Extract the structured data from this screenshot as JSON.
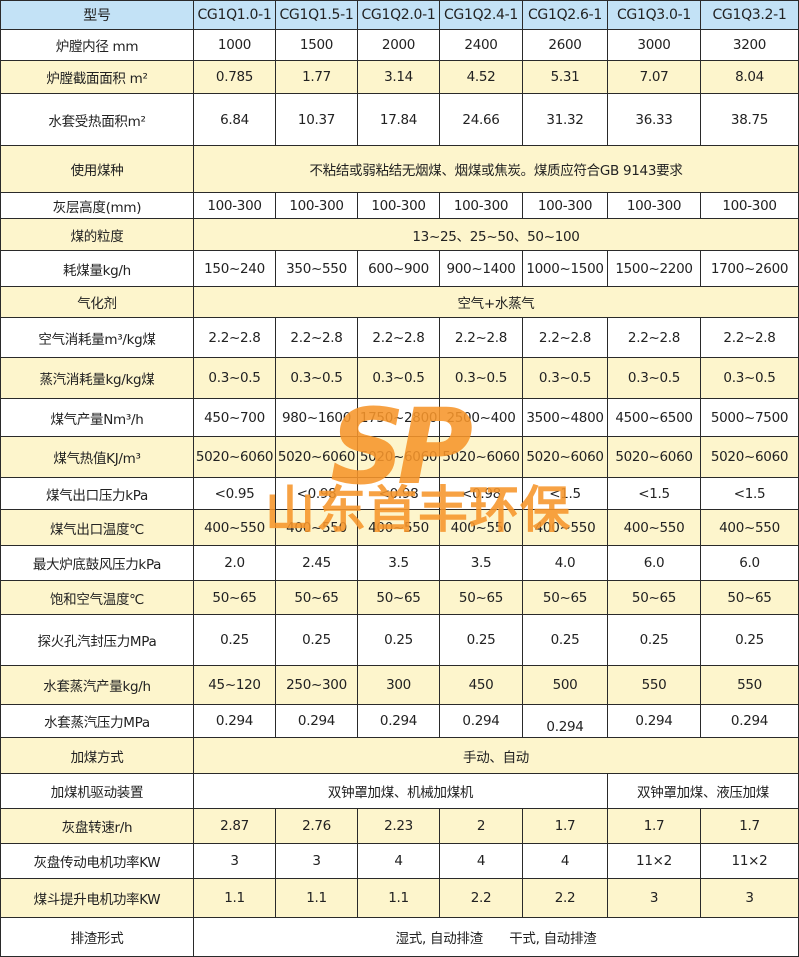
{
  "colors": {
    "header_bg": "#c3e2f6",
    "highlight_bg": "#fdf5cc",
    "watermark": "#f7962b"
  },
  "watermark": {
    "logo": "SP",
    "company": "山东首丰环保"
  },
  "table": {
    "header": {
      "label": "型号",
      "models": [
        "CG1Q1.0-1",
        "CG1Q1.5-1",
        "CG1Q2.0-1",
        "CG1Q2.4-1",
        "CG1Q2.6-1",
        "CG1Q3.0-1",
        "CG1Q3.2-1"
      ]
    },
    "rows": [
      {
        "label": "炉膛内径 mm",
        "cells": [
          "1000",
          "1500",
          "2000",
          "2400",
          "2600",
          "3000",
          "3200"
        ]
      },
      {
        "label": "炉膛截面面积 m²",
        "highlight": true,
        "cells": [
          "0.785",
          "1.77",
          "3.14",
          "4.52",
          "5.31",
          "7.07",
          "8.04"
        ]
      },
      {
        "label": "水套受热面积m²",
        "cells": [
          "6.84",
          "10.37",
          "17.84",
          "24.66",
          "31.32",
          "36.33",
          "38.75"
        ]
      },
      {
        "label": "使用煤种",
        "highlight": true,
        "spans": [
          {
            "text": "不粘结或弱粘结无烟煤、烟煤或焦炭。煤质应符合GB 9143要求",
            "cols": 7
          }
        ]
      },
      {
        "label": "灰层高度(mm)",
        "cells": [
          "100-300",
          "100-300",
          "100-300",
          "100-300",
          "100-300",
          "100-300",
          "100-300"
        ]
      },
      {
        "label": "煤的粒度",
        "highlight": true,
        "spans": [
          {
            "text": "13~25、25~50、50~100",
            "cols": 7
          }
        ]
      },
      {
        "label": "耗煤量kg/h",
        "cells": [
          "150~240",
          "350~550",
          "600~900",
          "900~1400",
          "1000~1500",
          "1500~2200",
          "1700~2600"
        ]
      },
      {
        "label": "气化剂",
        "highlight": true,
        "spans": [
          {
            "text": "空气+水蒸气",
            "cols": 7
          }
        ]
      },
      {
        "label": "空气消耗量m³/kg煤",
        "cells": [
          "2.2~2.8",
          "2.2~2.8",
          "2.2~2.8",
          "2.2~2.8",
          "2.2~2.8",
          "2.2~2.8",
          "2.2~2.8"
        ]
      },
      {
        "label": "蒸汽消耗量kg/kg煤",
        "highlight": true,
        "cells": [
          "0.3~0.5",
          "0.3~0.5",
          "0.3~0.5",
          "0.3~0.5",
          "0.3~0.5",
          "0.3~0.5",
          "0.3~0.5"
        ]
      },
      {
        "label": "煤气产量Nm³/h",
        "cells": [
          "450~700",
          "980~1600",
          "1750~2800",
          "2500~400",
          "3500~4800",
          "4500~6500",
          "5000~7500"
        ]
      },
      {
        "label": "煤气热值KJ/m³",
        "highlight": true,
        "cells": [
          "5020~6060",
          "5020~6060",
          "5020~6060",
          "5020~6060",
          "5020~6060",
          "5020~6060",
          "5020~6060"
        ]
      },
      {
        "label": "煤气出口压力kPa",
        "cells": [
          "<0.95",
          "<0.98",
          "<0.98",
          "<0.98",
          "<1.5",
          "<1.5",
          "<1.5"
        ]
      },
      {
        "label": "煤气出口温度℃",
        "highlight": true,
        "cells": [
          "400~550",
          "400~550",
          "400~550",
          "400~550",
          "400~550",
          "400~550",
          "400~550"
        ]
      },
      {
        "label": "最大炉底鼓风压力kPa",
        "cells": [
          "2.0",
          "2.45",
          "3.5",
          "3.5",
          "4.0",
          "6.0",
          "6.0"
        ]
      },
      {
        "label": "饱和空气温度℃",
        "highlight": true,
        "cells": [
          "50~65",
          "50~65",
          "50~65",
          "50~65",
          "50~65",
          "50~65",
          "50~65"
        ]
      },
      {
        "label": "探火孔汽封压力MPa",
        "cells": [
          "0.25",
          "0.25",
          "0.25",
          "0.25",
          "0.25",
          "0.25",
          "0.25"
        ]
      },
      {
        "label": "水套蒸汽产量kg/h",
        "highlight": true,
        "cells": [
          "45~120",
          "250~300",
          "300",
          "450",
          "500",
          "550",
          "550"
        ]
      },
      {
        "label": "水套蒸汽压力MPa",
        "cells": [
          "0.294",
          "0.294",
          "0.294",
          "0.294",
          "0.294",
          "0.294",
          "0.294"
        ]
      },
      {
        "label": "加煤方式",
        "highlight": true,
        "spans": [
          {
            "text": "手动、自动",
            "cols": 7
          }
        ]
      },
      {
        "label": "加煤机驱动装置",
        "spans": [
          {
            "text": "双钟罩加煤、机械加煤机",
            "cols": 5
          },
          {
            "text": "双钟罩加煤、液压加煤",
            "cols": 2
          }
        ]
      },
      {
        "label": "灰盘转速r/h",
        "highlight": true,
        "cells": [
          "2.87",
          "2.76",
          "2.23",
          "2",
          "1.7",
          "1.7",
          "1.7"
        ]
      },
      {
        "label": "灰盘传动电机功率KW",
        "cells": [
          "3",
          "3",
          "4",
          "4",
          "4",
          "11×2",
          "11×2"
        ]
      },
      {
        "label": "煤斗提升电机功率KW",
        "highlight": true,
        "cells": [
          "1.1",
          "1.1",
          "1.1",
          "2.2",
          "2.2",
          "3",
          "3"
        ]
      },
      {
        "label": "排渣形式",
        "spans": [
          {
            "text": "湿式, 自动排渣　　干式, 自动排渣",
            "cols": 7
          }
        ]
      }
    ]
  }
}
